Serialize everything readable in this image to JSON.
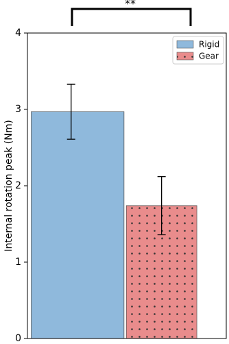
{
  "chart_data": {
    "type": "bar",
    "ylabel": "Internal rotation peak (Nm)",
    "annotation": "**",
    "series": [
      {
        "name": "Rigid",
        "color": "#8fb9dc",
        "values": [
          2.97
        ],
        "errors": [
          0.36
        ]
      },
      {
        "name": "Gear",
        "color": "#e98c8c",
        "hatch": "dots",
        "values": [
          1.74
        ],
        "errors": [
          0.38
        ]
      }
    ],
    "ylim": [
      0,
      4
    ],
    "yticks": [
      0,
      1,
      2,
      3,
      4
    ],
    "legend": "upper right"
  }
}
